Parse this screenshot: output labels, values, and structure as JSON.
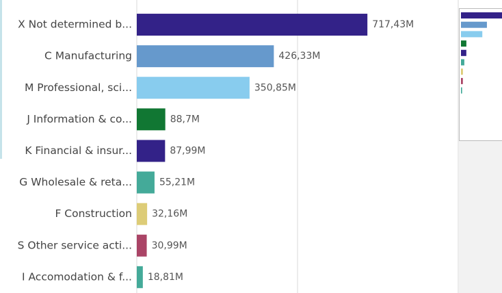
{
  "chart_data": {
    "type": "bar",
    "orientation": "horizontal",
    "categories": [
      "X Not determined b...",
      "C Manufacturing",
      "M Professional, sci...",
      "J Information & co...",
      "K Financial & insur...",
      "G Wholesale & reta...",
      "F Construction",
      "S Other service acti...",
      "I Accomodation & f..."
    ],
    "values": [
      717.43,
      426.33,
      350.85,
      88.7,
      87.99,
      55.21,
      32.16,
      30.99,
      18.81
    ],
    "value_labels": [
      "717,43M",
      "426,33M",
      "350,85M",
      "88,7M",
      "87,99M",
      "55,21M",
      "32,16M",
      "30,99M",
      "18,81M"
    ],
    "colors": [
      "#332288",
      "#6699cc",
      "#88ccee",
      "#117733",
      "#332288",
      "#44aa99",
      "#ddcc77",
      "#aa4466",
      "#44aa99"
    ],
    "xlim": [
      0,
      1000
    ],
    "xticks": [
      0,
      500,
      1000
    ],
    "grid": true
  }
}
